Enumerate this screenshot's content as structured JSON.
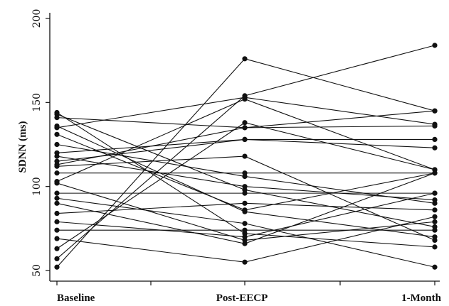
{
  "chart_data": {
    "type": "line",
    "title": "",
    "xlabel": "",
    "ylabel": "SDNN (ms)",
    "categories": [
      "Baseline",
      "Post-EECP",
      "1-Month"
    ],
    "ylim": [
      50,
      200
    ],
    "yticks": [
      50,
      100,
      150,
      200
    ],
    "grid": false,
    "series": [
      {
        "values": [
          52,
          176,
          145
        ]
      },
      {
        "values": [
          57,
          154,
          184
        ]
      },
      {
        "values": [
          63,
          138,
          110
        ]
      },
      {
        "values": [
          69,
          55,
          82
        ]
      },
      {
        "values": [
          74,
          74,
          74
        ]
      },
      {
        "values": [
          79,
          70,
          96
        ]
      },
      {
        "values": [
          84,
          90,
          86
        ]
      },
      {
        "values": [
          90,
          66,
          108
        ]
      },
      {
        "values": [
          93,
          78,
          52
        ]
      },
      {
        "values": [
          96,
          96,
          96
        ]
      },
      {
        "values": [
          102,
          68,
          79
        ]
      },
      {
        "values": [
          103,
          152,
          110
        ]
      },
      {
        "values": [
          108,
          108,
          108
        ]
      },
      {
        "values": [
          112,
          118,
          68
        ]
      },
      {
        "values": [
          113,
          135,
          145
        ]
      },
      {
        "values": [
          115,
          128,
          128
        ]
      },
      {
        "values": [
          118,
          100,
          92
        ]
      },
      {
        "values": [
          120,
          128,
          123
        ]
      },
      {
        "values": [
          125,
          106,
          90
        ]
      },
      {
        "values": [
          131,
          86,
          108
        ]
      },
      {
        "values": [
          135,
          153,
          137
        ]
      },
      {
        "values": [
          136,
          85,
          70
        ]
      },
      {
        "values": [
          141,
          135,
          136
        ]
      },
      {
        "values": [
          143,
          98,
          76
        ]
      },
      {
        "values": [
          144,
          72,
          64
        ]
      }
    ]
  }
}
